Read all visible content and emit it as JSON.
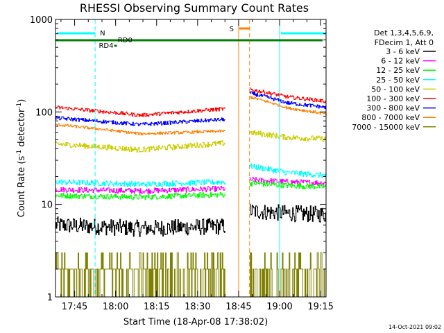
{
  "chart_data": {
    "type": "line",
    "title": "RHESSI Observing Summary Count Rates",
    "xlabel": "Start Time (18-Apr-08 17:38:02)",
    "ylabel": "Count Rate (s",
    "ylabel_sup1": "-1",
    "ylabel_mid": " detector",
    "ylabel_sup2": "-1",
    "ylabel_end": ")",
    "yscale": "log",
    "ylim": [
      1,
      1000
    ],
    "xlim_minutes": [
      0,
      99
    ],
    "y_ticks": [
      1,
      10,
      100,
      1000
    ],
    "y_tick_labels": [
      "1",
      "10",
      "100",
      "1000"
    ],
    "x_ticks_minutes": [
      7,
      22,
      37,
      52,
      67,
      82,
      97
    ],
    "x_tick_labels": [
      "17:45",
      "18:00",
      "18:15",
      "18:30",
      "18:45",
      "19:00",
      "19:15"
    ],
    "legend_header": [
      "Det 1,3,4,5,6,9,",
      "FDecim 1, Att 0"
    ],
    "series": [
      {
        "name": "3 - 6 keV",
        "color": "#000000",
        "seg1": [
          6.0,
          5.5,
          5.8
        ],
        "seg2": [
          8.5,
          8.0,
          7.8
        ],
        "noise": 0.09
      },
      {
        "name": "6 - 12 keV",
        "color": "#ff00ff",
        "seg1": [
          14.5,
          14.0,
          14.8
        ],
        "seg2": [
          18.5,
          17.5,
          17.0
        ],
        "noise": 0.03
      },
      {
        "name": "12 - 25 keV",
        "color": "#00ff00",
        "seg1": [
          12.5,
          12.0,
          12.8
        ],
        "seg2": [
          17.0,
          16.0,
          15.5
        ],
        "noise": 0.03
      },
      {
        "name": "25 - 50 keV",
        "color": "#00ffff",
        "seg1": [
          17.5,
          16.5,
          17.5
        ],
        "seg2": [
          26.0,
          22.0,
          20.5
        ],
        "noise": 0.03
      },
      {
        "name": "50 - 100 keV",
        "color": "#cccc00",
        "seg1": [
          45.0,
          39.0,
          46.0
        ],
        "seg2": [
          60.0,
          53.0,
          51.0
        ],
        "noise": 0.03
      },
      {
        "name": "100 - 300 keV",
        "color": "#ff0000",
        "seg1": [
          112.0,
          92.0,
          108.0
        ],
        "seg2": [
          175.0,
          145.0,
          130.0
        ],
        "noise": 0.02
      },
      {
        "name": "300 - 800 keV",
        "color": "#0000ff",
        "seg1": [
          86.0,
          73.0,
          83.0
        ],
        "seg2": [
          160.0,
          125.0,
          112.0
        ],
        "noise": 0.02
      },
      {
        "name": "800 - 7000 keV",
        "color": "#ff8000",
        "seg1": [
          73.0,
          58.0,
          62.0
        ],
        "seg2": [
          145.0,
          110.0,
          95.0
        ],
        "noise": 0.015
      },
      {
        "name": "7000 - 15000 keV",
        "color": "#808000",
        "seg1": [
          2.0,
          1.7,
          2.0
        ],
        "seg2": [
          2.0,
          1.8,
          2.0
        ],
        "noise": 0.0
      }
    ],
    "data_segments_minutes": [
      [
        0,
        62
      ],
      [
        71,
        99
      ]
    ],
    "annotations": {
      "N": "N",
      "S": "S",
      "RD0": "RD0",
      "RD4": "RD4",
      "night_intervals_minutes": [
        [
          0,
          14.5
        ],
        [
          82,
          99
        ]
      ],
      "saa_interval_minutes": [
        67,
        71
      ],
      "saa_bar_minutes": [
        67,
        71
      ]
    },
    "colors": {
      "night": "#00ffff",
      "saa": "#ff8000",
      "decim": "#008000",
      "axis": "#000000"
    }
  },
  "footer": {
    "date_stamp": "14-Oct-2021 09:02"
  }
}
